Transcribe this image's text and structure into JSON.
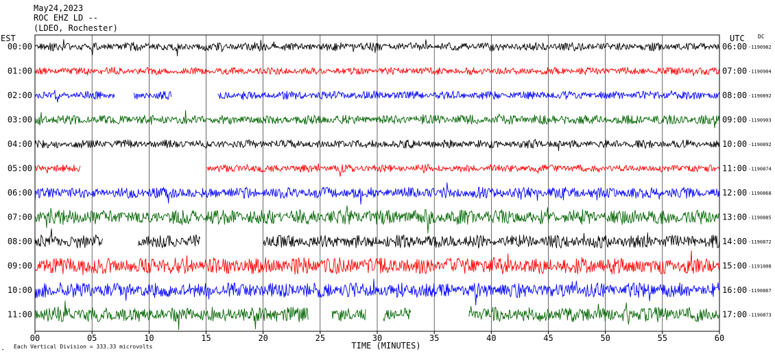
{
  "header": {
    "line1": "May24,2023",
    "line2": "ROC EHZ LD --",
    "line3": "(LDEO, Rochester)"
  },
  "labels": {
    "left_zone": "EST",
    "right_zone": "UTC",
    "dc_header": "DC",
    "time_axis": "TIME (MINUTES)",
    "scale_note": "Each Vertical Division =  333.33 microvolts",
    "corner_mark": "⋆"
  },
  "colors": {
    "black": "#000000",
    "red": "#ff0000",
    "blue": "#0000ff",
    "green": "#006400",
    "frame": "#000000",
    "grid": "#000000"
  },
  "chart_data": {
    "type": "line",
    "title": "May24,2023 ROC EHZ LD -- (LDEO, Rochester)",
    "xlabel": "TIME (MINUTES)",
    "ylabel": "",
    "xlim": [
      0,
      60
    ],
    "x_ticks": [
      "00",
      "05",
      "10",
      "15",
      "20",
      "25",
      "30",
      "35",
      "40",
      "45",
      "50",
      "55",
      "60"
    ],
    "grid": true,
    "color_cycle": [
      "black",
      "red",
      "blue",
      "green"
    ],
    "traces": [
      {
        "est": "00:00",
        "utc": "06:00",
        "dc": "-1190982",
        "color": "black",
        "amp": 0.45,
        "gaps": []
      },
      {
        "est": "01:00",
        "utc": "07:00",
        "dc": "-1190904",
        "color": "red",
        "amp": 0.4,
        "gaps": []
      },
      {
        "est": "02:00",
        "utc": "08:00",
        "dc": "-1190892",
        "color": "blue",
        "amp": 0.45,
        "gaps": [
          [
            7,
            8.6
          ],
          [
            12,
            16
          ]
        ]
      },
      {
        "est": "03:00",
        "utc": "09:00",
        "dc": "-1190903",
        "color": "green",
        "amp": 0.5,
        "gaps": []
      },
      {
        "est": "04:00",
        "utc": "10:00",
        "dc": "-1190892",
        "color": "black",
        "amp": 0.45,
        "gaps": []
      },
      {
        "est": "05:00",
        "utc": "11:00",
        "dc": "-1190874",
        "color": "red",
        "amp": 0.4,
        "gaps": [
          [
            4,
            15
          ]
        ]
      },
      {
        "est": "06:00",
        "utc": "12:00",
        "dc": "-1190868",
        "color": "blue",
        "amp": 0.6,
        "gaps": []
      },
      {
        "est": "07:00",
        "utc": "13:00",
        "dc": "-1190885",
        "color": "green",
        "amp": 0.8,
        "gaps": []
      },
      {
        "est": "08:00",
        "utc": "14:00",
        "dc": "-1190872",
        "color": "black",
        "amp": 0.7,
        "gaps": [
          [
            6,
            9
          ],
          [
            14.5,
            20
          ]
        ]
      },
      {
        "est": "09:00",
        "utc": "15:00",
        "dc": "-1191008",
        "color": "red",
        "amp": 0.9,
        "gaps": []
      },
      {
        "est": "10:00",
        "utc": "16:00",
        "dc": "-1190867",
        "color": "blue",
        "amp": 0.8,
        "gaps": []
      },
      {
        "est": "11:00",
        "utc": "17:00",
        "dc": "-1190873",
        "color": "green",
        "amp": 0.8,
        "gaps": [
          [
            24,
            26
          ],
          [
            29,
            30.5
          ],
          [
            33,
            38
          ]
        ]
      }
    ]
  }
}
